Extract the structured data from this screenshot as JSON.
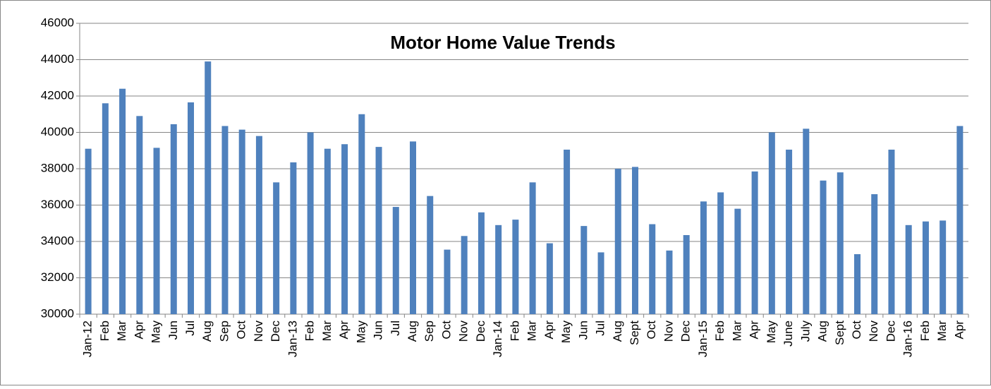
{
  "chart_data": {
    "type": "bar",
    "title": "Motor Home Value Trends",
    "categories": [
      "Jan-12",
      "Feb",
      "Mar",
      "Apr",
      "May",
      "Jun",
      "Jul",
      "Aug",
      "Sep",
      "Oct",
      "Nov",
      "Dec",
      "Jan-13",
      "Feb",
      "Mar",
      "Apr",
      "May",
      "Jun",
      "Jul",
      "Aug",
      "Sep",
      "Oct",
      "Nov",
      "Dec",
      "Jan-14",
      "Feb",
      "Mar",
      "Apr",
      "May",
      "Jun",
      "Jul",
      "Aug",
      "Sept",
      "Oct",
      "Nov",
      "Dec",
      "Jan-15",
      "Feb",
      "Mar",
      "Apr",
      "May",
      "June",
      "July",
      "Aug",
      "Sept",
      "Oct",
      "Nov",
      "Dec",
      "Jan-16",
      "Feb",
      "Mar",
      "Apr"
    ],
    "values": [
      39100,
      41600,
      42400,
      40900,
      39150,
      40450,
      41650,
      43900,
      40350,
      40150,
      39800,
      37250,
      38350,
      40000,
      39100,
      39350,
      41000,
      39200,
      35900,
      39500,
      36500,
      33550,
      34300,
      35600,
      34900,
      35200,
      37250,
      33900,
      39050,
      34850,
      33400,
      38000,
      38100,
      34950,
      33500,
      34350,
      36200,
      36700,
      35800,
      37850,
      40000,
      39050,
      40200,
      37350,
      37800,
      33300,
      36600,
      39050,
      34900,
      35100,
      35150,
      40350
    ],
    "color": "#4f81bd",
    "ylim": [
      30000,
      46000
    ],
    "yticks": [
      30000,
      32000,
      34000,
      36000,
      38000,
      40000,
      42000,
      44000,
      46000
    ],
    "grid": true
  }
}
